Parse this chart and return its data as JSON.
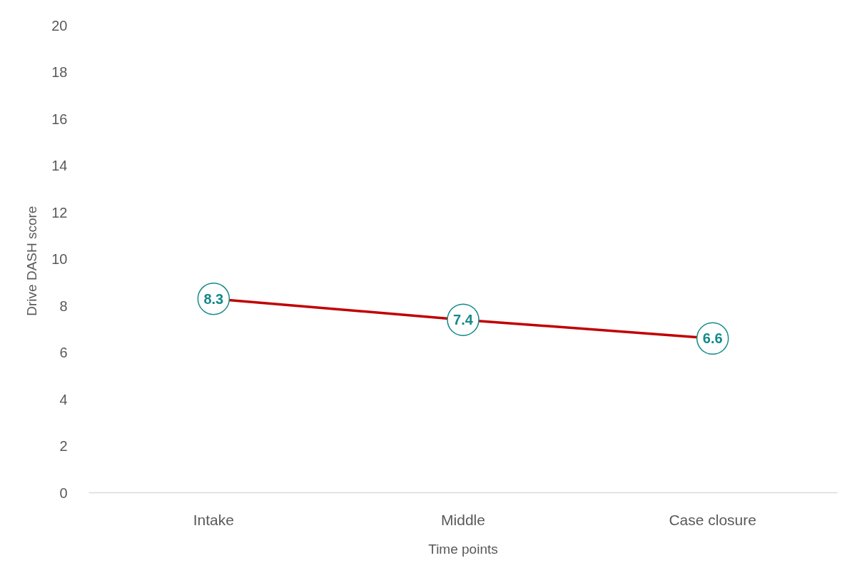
{
  "chart_data": {
    "type": "line",
    "categories": [
      "Intake",
      "Middle",
      "Case closure"
    ],
    "series": [
      {
        "color": "#c00000",
        "colors": [
          "#138a8a",
          "#138a8a",
          "#138a8a"
        ],
        "values": [
          8.3,
          7.4,
          6.6
        ]
      }
    ],
    "xlabel": "Time points",
    "ylabel": "Drive DASH  score",
    "ylim": [
      0,
      20
    ],
    "yticks": [
      0,
      2,
      4,
      6,
      8,
      10,
      12,
      14,
      16,
      18,
      20
    ],
    "grid": false,
    "marker": "circle",
    "line_style": "solid",
    "data_labels": true
  }
}
